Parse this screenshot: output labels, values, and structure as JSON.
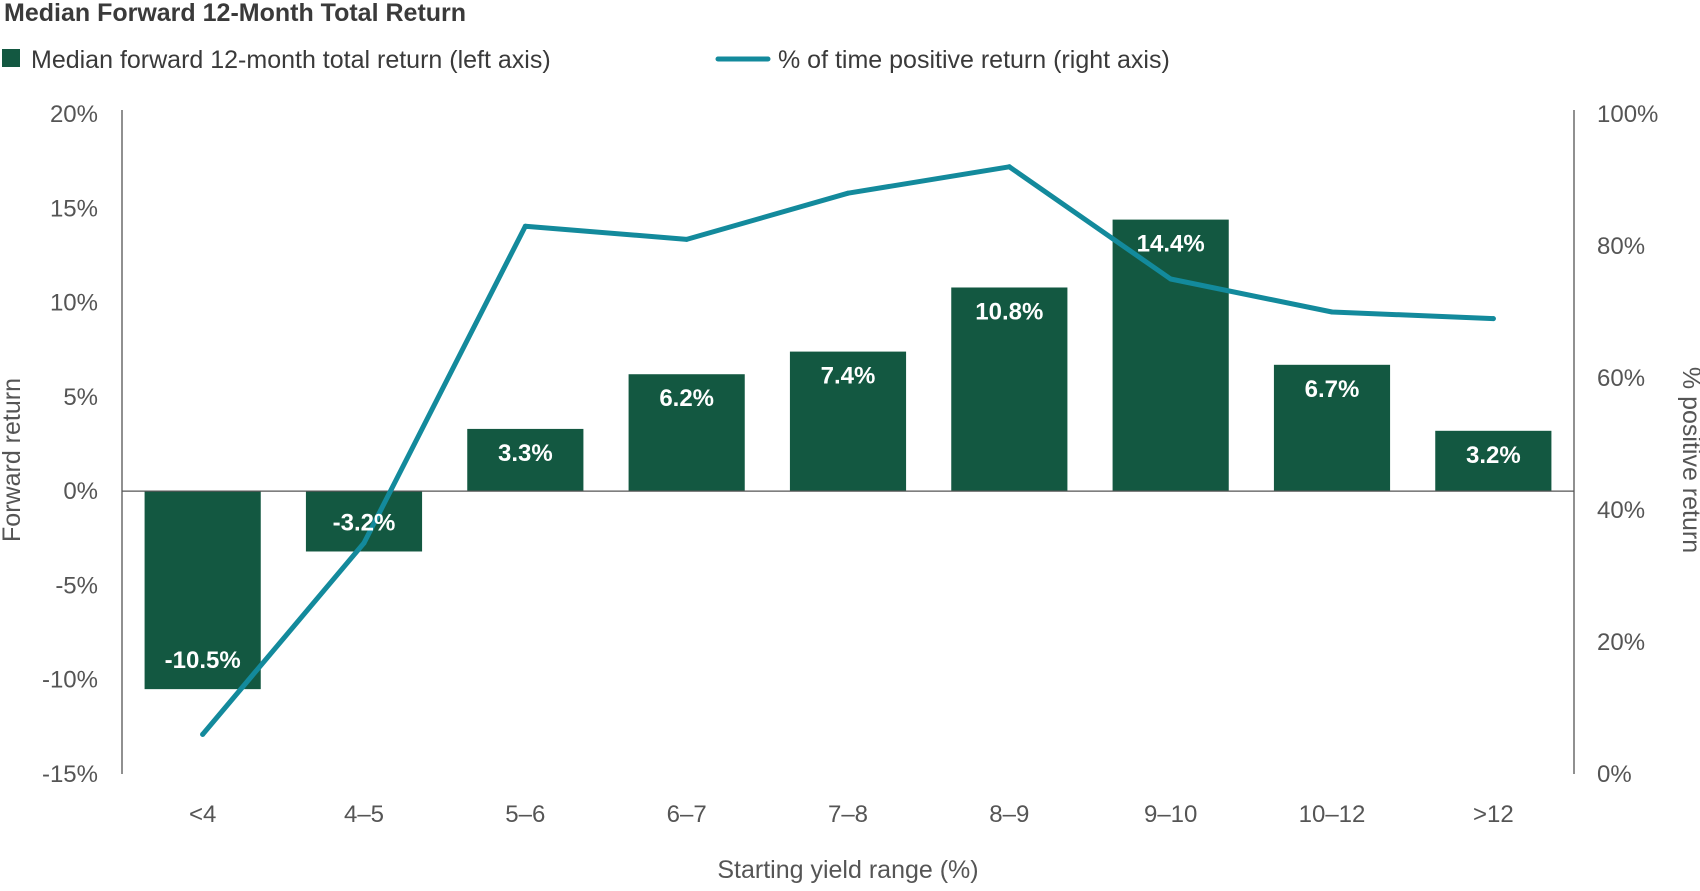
{
  "chart_data": {
    "type": "bar",
    "title": "Median Forward 12-Month Total Return",
    "categories": [
      "<4",
      "4–5",
      "5–6",
      "6–7",
      "7–8",
      "8–9",
      "9–10",
      "10–12",
      ">12"
    ],
    "series": [
      {
        "name": "Median forward 12-month total return (left axis)",
        "type": "bar",
        "axis": "left",
        "color": "#135841",
        "values": [
          -10.5,
          -3.2,
          3.3,
          6.2,
          7.4,
          10.8,
          14.4,
          6.7,
          3.2
        ],
        "labels": [
          "-10.5%",
          "-3.2%",
          "3.3%",
          "6.2%",
          "7.4%",
          "10.8%",
          "14.4%",
          "6.7%",
          "3.2%"
        ]
      },
      {
        "name": "% of time positive return (right axis)",
        "type": "line",
        "axis": "right",
        "color": "#138a9c",
        "values": [
          6,
          35,
          83,
          81,
          88,
          92,
          75,
          70,
          69
        ]
      }
    ],
    "xlabel": "Starting yield range (%)",
    "ylabel": "Forward return",
    "y2label": "% positive return",
    "ylim": [
      -15,
      20
    ],
    "y2lim": [
      0,
      100
    ],
    "yticks": [
      20,
      15,
      10,
      5,
      0,
      -5,
      -10,
      -15
    ],
    "ytick_labels": [
      "20%",
      "15%",
      "10%",
      "5%",
      "0%",
      "-5%",
      "-10%",
      "-15%"
    ],
    "y2ticks": [
      100,
      80,
      60,
      40,
      20,
      0
    ],
    "y2tick_labels": [
      "100%",
      "80%",
      "60%",
      "40%",
      "20%",
      "0%"
    ],
    "grid": false,
    "legend_position": "top-left"
  }
}
